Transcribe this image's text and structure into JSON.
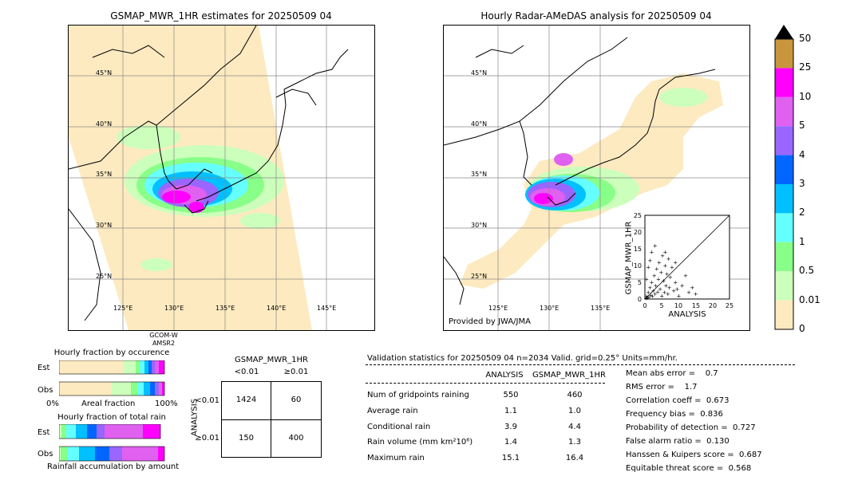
{
  "left_map": {
    "title": "GSMAP_MWR_1HR estimates for 20250509 04",
    "lat_labels": [
      "45°N",
      "40°N",
      "35°N",
      "30°N",
      "25°N"
    ],
    "lon_labels": [
      "125°E",
      "130°E",
      "135°E",
      "140°E",
      "145°E"
    ],
    "sensor_line1": "GCOM-W",
    "sensor_line2": "AMSR2"
  },
  "right_map": {
    "title": "Hourly Radar-AMeDAS analysis for 20250509 04",
    "lat_labels": [
      "45°N",
      "40°N",
      "35°N",
      "30°N",
      "25°N"
    ],
    "lon_labels": [
      "125°E",
      "130°E",
      "135°E"
    ],
    "credit": "Provided by JWA/JMA"
  },
  "colorbar": {
    "ticks": [
      "50",
      "25",
      "10",
      "5",
      "4",
      "3",
      "2",
      "1",
      "0.5",
      "0.01",
      "0"
    ],
    "colors": [
      "#c8963c",
      "#ff00ff",
      "#e060f0",
      "#9966ff",
      "#0066ff",
      "#00c0ff",
      "#66ffff",
      "#88ff88",
      "#ccffbb",
      "#fdeac0"
    ]
  },
  "scatter": {
    "xlabel": "ANALYSIS",
    "ylabel": "GSMAP_MWR_1HR",
    "ticks": [
      "0",
      "5",
      "10",
      "15",
      "20",
      "25"
    ]
  },
  "occurrence": {
    "title": "Hourly fraction by occurence",
    "row_est": "Est",
    "row_obs": "Obs",
    "x_min": "0%",
    "x_label": "Areal fraction",
    "x_max": "100%"
  },
  "total_rain": {
    "title": "Hourly fraction of total rain",
    "row_est": "Est",
    "row_obs": "Obs",
    "x_label": "Rainfall accumulation by amount"
  },
  "contingency": {
    "title": "GSMAP_MWR_1HR",
    "col_lt": "<0.01",
    "col_ge": "≥0.01",
    "row_label": "ANALYSIS",
    "row_lt": "<0.01",
    "row_ge": "≥0.01",
    "a": "1424",
    "b": "60",
    "c": "150",
    "d": "400"
  },
  "validation": {
    "header": "Validation statistics for 20250509 04  n=2034 Valid. grid=0.25° Units=mm/hr.",
    "col1": "ANALYSIS",
    "col2": "GSMAP_MWR_1HR",
    "rows": [
      {
        "label": "Num of gridpoints raining",
        "a": "550",
        "g": "460"
      },
      {
        "label": "Average rain",
        "a": "1.1",
        "g": "1.0"
      },
      {
        "label": "Conditional rain",
        "a": "3.9",
        "g": "4.4"
      },
      {
        "label": "Rain volume (mm km²10⁶)",
        "a": "1.4",
        "g": "1.3"
      },
      {
        "label": "Maximum rain",
        "a": "15.1",
        "g": "16.4"
      }
    ],
    "scores": [
      "Mean abs error =    0.7",
      "RMS error =    1.7",
      "Correlation coeff =  0.673",
      "Frequency bias =  0.836",
      "Probability of detection =  0.727",
      "False alarm ratio =  0.130",
      "Hanssen & Kuipers score =  0.687",
      "Equitable threat score =  0.568"
    ]
  },
  "chart_data": {
    "type": "scatter",
    "xlabel": "ANALYSIS",
    "ylabel": "GSMAP_MWR_1HR",
    "xlim": [
      0,
      25
    ],
    "ylim": [
      0,
      25
    ],
    "points": [
      [
        0.3,
        0.2
      ],
      [
        0.5,
        1.0
      ],
      [
        0.8,
        0.4
      ],
      [
        1.0,
        2.0
      ],
      [
        1.2,
        0.6
      ],
      [
        1.5,
        3.5
      ],
      [
        1.8,
        1.2
      ],
      [
        2.0,
        5.0
      ],
      [
        2.2,
        0.8
      ],
      [
        2.5,
        2.5
      ],
      [
        2.8,
        7.0
      ],
      [
        3.0,
        1.5
      ],
      [
        3.2,
        4.0
      ],
      [
        3.5,
        9.0
      ],
      [
        3.8,
        2.2
      ],
      [
        4.0,
        6.0
      ],
      [
        4.2,
        11.0
      ],
      [
        4.5,
        3.0
      ],
      [
        4.8,
        8.0
      ],
      [
        5.0,
        1.0
      ],
      [
        5.2,
        13.0
      ],
      [
        5.5,
        5.5
      ],
      [
        5.8,
        2.0
      ],
      [
        6.0,
        10.0
      ],
      [
        6.2,
        4.0
      ],
      [
        6.5,
        7.5
      ],
      [
        6.8,
        1.5
      ],
      [
        7.0,
        12.0
      ],
      [
        7.2,
        3.5
      ],
      [
        7.5,
        6.5
      ],
      [
        8.0,
        9.5
      ],
      [
        8.5,
        2.5
      ],
      [
        9.0,
        5.0
      ],
      [
        9.5,
        3.0
      ],
      [
        10.0,
        1.0
      ],
      [
        11.0,
        4.0
      ],
      [
        12.0,
        7.0
      ],
      [
        13.0,
        2.0
      ],
      [
        14.0,
        3.5
      ],
      [
        15.0,
        1.5
      ],
      [
        3.0,
        16.0
      ],
      [
        2.0,
        14.0
      ],
      [
        1.0,
        9.5
      ],
      [
        1.5,
        11.5
      ],
      [
        0.5,
        6.0
      ],
      [
        6.0,
        14.0
      ],
      [
        9.0,
        11.0
      ]
    ]
  }
}
